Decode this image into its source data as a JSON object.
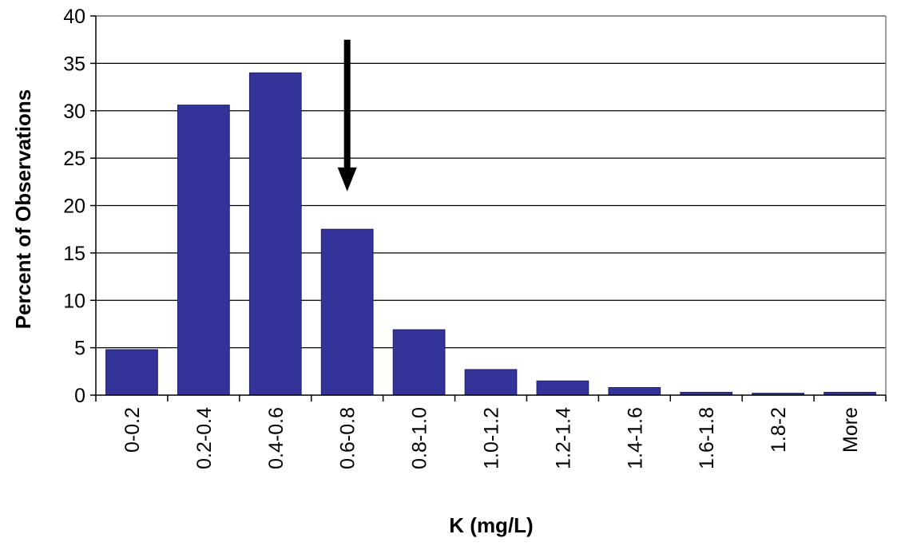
{
  "chart_data": {
    "type": "bar",
    "title": "",
    "xlabel": "K (mg/L)",
    "ylabel": "Percent of Observations",
    "categories": [
      "0-0.2",
      "0.2-0.4",
      "0.4-0.6",
      "0.6-0.8",
      "0.8-1.0",
      "1.0-1.2",
      "1.2-1.4",
      "1.4-1.6",
      "1.6-1.8",
      "1.8-2",
      "More"
    ],
    "series": [
      {
        "name": "",
        "values": [
          4.8,
          30.6,
          34.0,
          17.5,
          6.9,
          2.7,
          1.5,
          0.8,
          0.3,
          0.2,
          0.3
        ]
      }
    ],
    "ylim": [
      0,
      40
    ],
    "yticks": [
      0,
      5,
      10,
      15,
      20,
      25,
      30,
      35,
      40
    ],
    "grid": true,
    "legend": "none",
    "annotation": {
      "type": "arrow",
      "target_category": "0.6-0.8",
      "from_value": 37.5,
      "to_value": 21.5
    },
    "colors": {
      "bar": "#333399",
      "bar_edge": "#1f1f66",
      "grid": "#000000",
      "plot_border": "#7f7f7f",
      "arrow": "#000000"
    }
  }
}
